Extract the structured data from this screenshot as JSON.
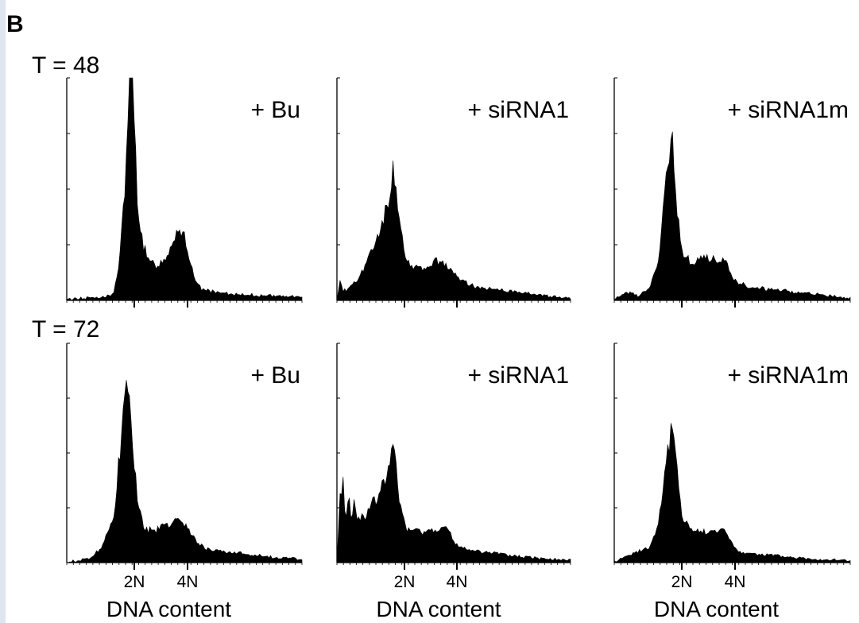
{
  "panel_letter": "B",
  "colors": {
    "fill": "#000000",
    "axis": "#000000",
    "background": "#ffffff",
    "edge": "#dfe4ef"
  },
  "chart_data": [
    {
      "type": "area",
      "row": "T = 48",
      "label": "+ Bu",
      "x_ticks": [
        "2N",
        "4N"
      ],
      "xlabel": "",
      "x": [
        0.0,
        0.3,
        0.6,
        0.8,
        0.9,
        1.0,
        1.05,
        1.1,
        1.15,
        1.2,
        1.3,
        1.4,
        1.5,
        1.6,
        1.7,
        1.8,
        1.9,
        2.0,
        2.1,
        2.2,
        2.3,
        2.5,
        2.7,
        3.0,
        3.5,
        4.0
      ],
      "values": [
        0.5,
        1.0,
        1.5,
        3.0,
        18.0,
        55.0,
        95.0,
        100.0,
        80.0,
        45.0,
        25.0,
        17.0,
        16.0,
        17.0,
        20.0,
        27.0,
        33.0,
        30.0,
        16.0,
        8.0,
        5.0,
        4.0,
        3.0,
        2.5,
        2.0,
        1.5
      ]
    },
    {
      "type": "area",
      "row": "T = 48",
      "label": "+ siRNA1",
      "x_ticks": [
        "2N",
        "4N"
      ],
      "xlabel": "",
      "x": [
        0.0,
        0.05,
        0.1,
        0.15,
        0.2,
        0.3,
        0.45,
        0.6,
        0.75,
        0.9,
        0.95,
        1.0,
        1.05,
        1.15,
        1.3,
        1.5,
        1.7,
        1.8,
        1.9,
        2.0,
        2.2,
        2.4,
        2.7,
        3.0,
        3.4,
        4.0
      ],
      "values": [
        0.5,
        9.0,
        5.0,
        4.0,
        6.0,
        8.0,
        14.0,
        22.0,
        33.0,
        46.0,
        60.0,
        57.0,
        40.0,
        20.0,
        15.0,
        14.0,
        17.0,
        18.0,
        16.0,
        13.0,
        8.0,
        6.0,
        5.0,
        4.0,
        2.5,
        1.0
      ]
    },
    {
      "type": "area",
      "row": "T = 48",
      "label": "+ siRNA1m",
      "x_ticks": [
        "2N",
        "4N"
      ],
      "xlabel": "",
      "x": [
        0.0,
        0.2,
        0.4,
        0.6,
        0.75,
        0.85,
        0.95,
        1.0,
        1.05,
        1.15,
        1.3,
        1.5,
        1.7,
        1.9,
        2.0,
        2.1,
        2.3,
        2.6,
        3.0,
        3.5,
        4.0
      ],
      "values": [
        0.5,
        4.0,
        2.0,
        5.0,
        18.0,
        45.0,
        68.0,
        69.0,
        45.0,
        22.0,
        17.0,
        19.0,
        19.0,
        16.0,
        10.0,
        8.0,
        6.0,
        5.0,
        4.0,
        2.5,
        1.0
      ]
    },
    {
      "type": "area",
      "row": "T = 72",
      "label": "+ Bu",
      "x_ticks": [
        "2N",
        "4N"
      ],
      "xlabel": "DNA content",
      "x": [
        0.0,
        0.2,
        0.4,
        0.6,
        0.8,
        0.9,
        1.0,
        1.05,
        1.1,
        1.2,
        1.3,
        1.5,
        1.7,
        1.9,
        2.0,
        2.2,
        2.4,
        2.7,
        3.0,
        3.5,
        4.0
      ],
      "values": [
        0.5,
        1.0,
        2.0,
        7.0,
        22.0,
        50.0,
        75.0,
        78.0,
        62.0,
        30.0,
        16.0,
        15.0,
        17.0,
        19.0,
        17.0,
        10.0,
        6.0,
        5.0,
        4.0,
        2.5,
        1.5
      ]
    },
    {
      "type": "area",
      "row": "T = 72",
      "label": "+ siRNA1",
      "x_ticks": [
        "2N",
        "4N"
      ],
      "xlabel": "DNA content",
      "x": [
        0.0,
        0.05,
        0.1,
        0.15,
        0.2,
        0.25,
        0.3,
        0.35,
        0.5,
        0.7,
        0.85,
        0.95,
        1.0,
        1.05,
        1.2,
        1.5,
        1.8,
        1.9,
        2.0,
        2.2,
        2.5,
        3.0,
        3.5,
        4.0
      ],
      "values": [
        0.5,
        30.0,
        38.0,
        20.0,
        32.0,
        18.0,
        28.0,
        20.0,
        22.0,
        30.0,
        40.0,
        50.0,
        48.0,
        30.0,
        15.0,
        14.0,
        16.0,
        15.0,
        9.0,
        6.0,
        5.0,
        3.0,
        2.0,
        1.0
      ]
    },
    {
      "type": "area",
      "row": "T = 72",
      "label": "+ siRNA1m",
      "x_ticks": [
        "2N",
        "4N"
      ],
      "xlabel": "DNA content",
      "x": [
        0.0,
        0.2,
        0.4,
        0.6,
        0.75,
        0.85,
        0.95,
        1.0,
        1.05,
        1.15,
        1.3,
        1.5,
        1.7,
        1.9,
        2.0,
        2.1,
        2.3,
        2.6,
        3.0,
        3.5,
        4.0
      ],
      "values": [
        0.5,
        3.0,
        5.0,
        7.0,
        18.0,
        40.0,
        58.0,
        60.0,
        44.0,
        22.0,
        15.0,
        14.0,
        15.0,
        14.0,
        9.0,
        5.0,
        4.0,
        3.5,
        2.5,
        1.5,
        1.0
      ]
    }
  ]
}
